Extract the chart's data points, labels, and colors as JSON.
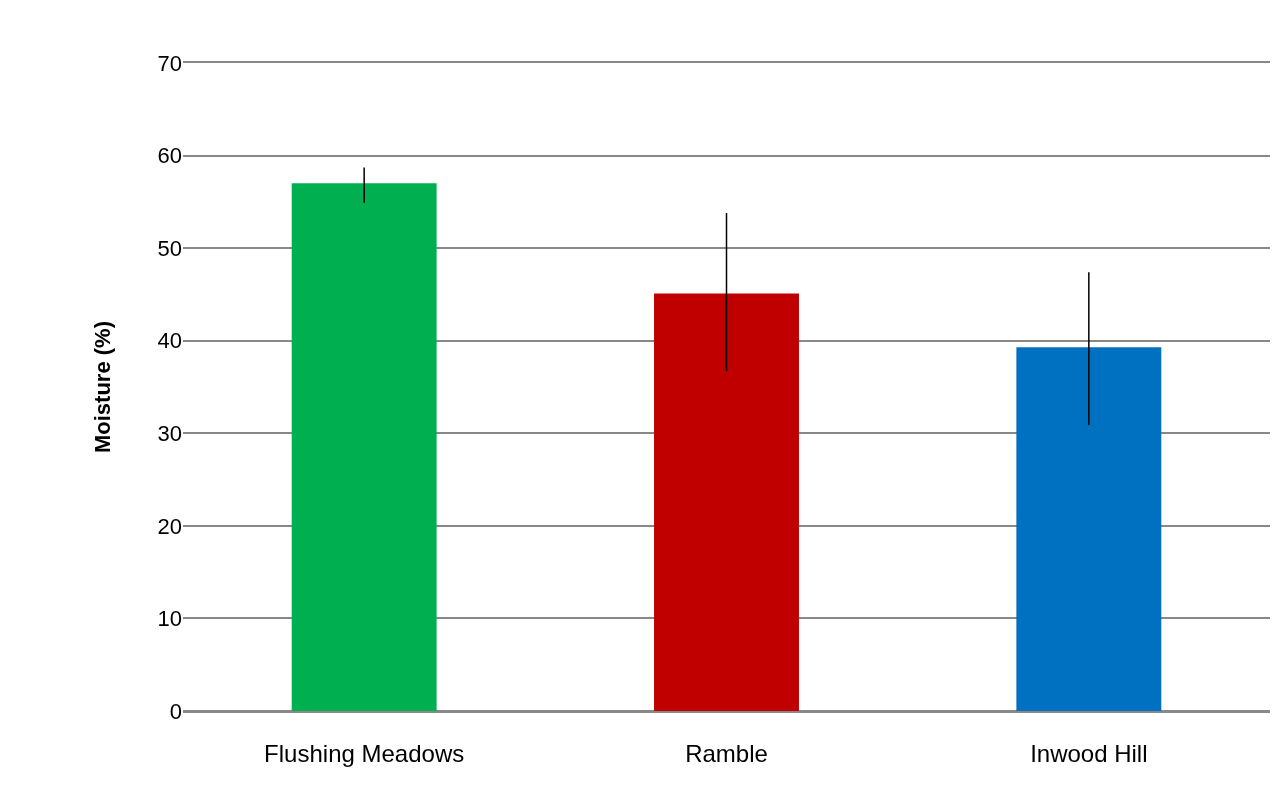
{
  "chart_data": {
    "type": "bar",
    "ylabel": "Moisture (%)",
    "categories": [
      "Flushing Meadows",
      "Ramble",
      "Inwood Hill"
    ],
    "values": [
      57,
      45.1,
      39.3
    ],
    "colors": [
      "#00b050",
      "#c00000",
      "#0070c0"
    ],
    "errors": [
      [
        54.9,
        58.7
      ],
      [
        36.7,
        53.8
      ],
      [
        30.9,
        47.4
      ]
    ],
    "ylim": [
      0,
      70
    ],
    "yticks": [
      0,
      10,
      20,
      30,
      40,
      50,
      60,
      70
    ],
    "grid": "y"
  }
}
